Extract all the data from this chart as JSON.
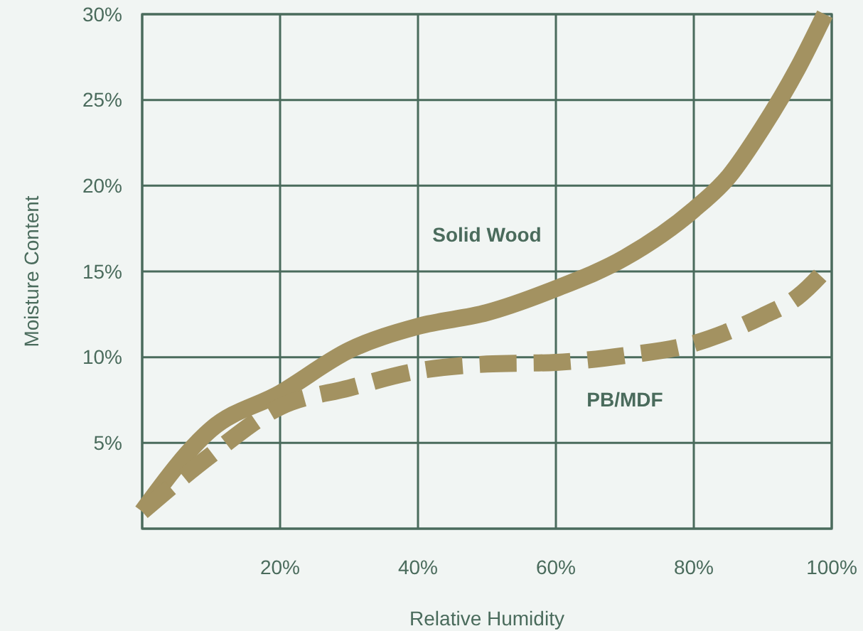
{
  "chart_data": {
    "type": "line",
    "xlabel": "Relative Humidity",
    "ylabel": "Moisture Content",
    "x": [
      0,
      10,
      20,
      30,
      40,
      50,
      60,
      70,
      80,
      85,
      90,
      95,
      99
    ],
    "series": [
      {
        "name": "Solid Wood",
        "color": "#a39261",
        "line_style": "solid",
        "values": [
          1,
          5.8,
          7.9,
          10.4,
          11.8,
          12.6,
          14.0,
          15.8,
          18.6,
          20.5,
          23.4,
          26.8,
          30
        ]
      },
      {
        "name": "PB/MDF",
        "color": "#a39261",
        "line_style": "dashed",
        "x": [
          0,
          10,
          20,
          30,
          40,
          50,
          60,
          70,
          80,
          85,
          90,
          95,
          100
        ],
        "values": [
          1,
          4.3,
          7.1,
          8.2,
          9.2,
          9.6,
          9.7,
          10.1,
          10.8,
          11.5,
          12.4,
          13.5,
          15.5
        ]
      }
    ],
    "xlim": [
      0,
      100
    ],
    "ylim": [
      0,
      30
    ],
    "xticks": [
      {
        "value": 0,
        "label": null
      },
      {
        "value": 20,
        "label": "20%"
      },
      {
        "value": 40,
        "label": "40%"
      },
      {
        "value": 60,
        "label": "60%"
      },
      {
        "value": 80,
        "label": "80%"
      },
      {
        "value": 100,
        "label": "100%"
      }
    ],
    "yticks": [
      {
        "value": 0,
        "label": null
      },
      {
        "value": 5,
        "label": "5%"
      },
      {
        "value": 10,
        "label": "10%"
      },
      {
        "value": 15,
        "label": "15%"
      },
      {
        "value": 20,
        "label": "20%"
      },
      {
        "value": 25,
        "label": "25%"
      },
      {
        "value": 30,
        "label": "30%"
      }
    ],
    "grid": true,
    "marker": "none"
  }
}
